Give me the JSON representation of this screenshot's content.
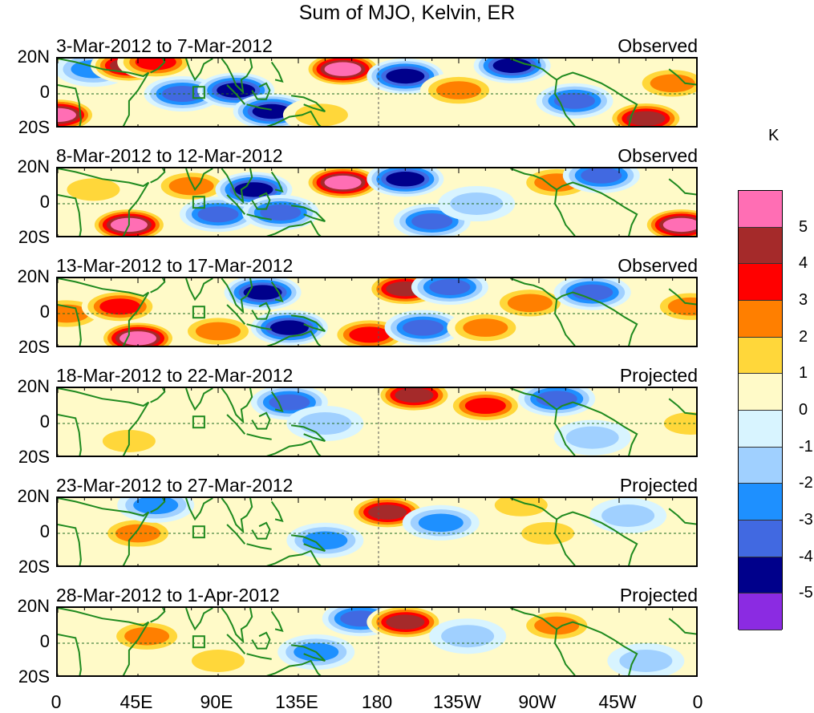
{
  "title": "Sum of MJO, Kelvin, ER",
  "colorbar": {
    "unit": "K",
    "levels": [
      "5",
      "4",
      "3",
      "2",
      "1",
      "0",
      "-1",
      "-2",
      "-3",
      "-4",
      "-5"
    ],
    "colors": [
      "#ff6eb4",
      "#a52a2a",
      "#ff0000",
      "#ff7f00",
      "#ffd73a",
      "#fffac8",
      "#d8f4ff",
      "#a0d0ff",
      "#1e90ff",
      "#4169e1",
      "#00008b",
      "#8b2be2"
    ]
  },
  "panels": [
    {
      "date": "3-Mar-2012 to 7-Mar-2012",
      "tag": "Observed"
    },
    {
      "date": "8-Mar-2012 to 12-Mar-2012",
      "tag": "Observed"
    },
    {
      "date": "13-Mar-2012 to 17-Mar-2012",
      "tag": "Observed"
    },
    {
      "date": "18-Mar-2012 to 22-Mar-2012",
      "tag": "Projected"
    },
    {
      "date": "23-Mar-2012 to 27-Mar-2012",
      "tag": "Projected"
    },
    {
      "date": "28-Mar-2012 to 1-Apr-2012",
      "tag": "Projected"
    }
  ],
  "axes": {
    "y_labels": [
      "20N",
      "0",
      "20S"
    ],
    "x_labels": [
      "0",
      "45E",
      "90E",
      "135E",
      "180",
      "135W",
      "90W",
      "45W",
      "0"
    ]
  },
  "chart_data": {
    "type": "heatmap",
    "title": "Sum of MJO, Kelvin, ER",
    "units": "K",
    "xlim": [
      0,
      360
    ],
    "ylim": [
      -20,
      20
    ],
    "x_ticks": [
      0,
      45,
      90,
      135,
      180,
      225,
      270,
      315,
      360
    ],
    "y_ticks": [
      20,
      0,
      -20
    ],
    "contour_levels": [
      -5,
      -4,
      -3,
      -2,
      -1,
      0,
      1,
      2,
      3,
      4,
      5
    ],
    "grid": false,
    "panels": [
      {
        "label": "3-Mar-2012 to 7-Mar-2012",
        "kind": "Observed",
        "anomalies": [
          {
            "lon": 0,
            "lat": -12,
            "value": 6
          },
          {
            "lon": 20,
            "lat": 14,
            "value": -2.5
          },
          {
            "lon": 40,
            "lat": 16,
            "value": 5
          },
          {
            "lon": 55,
            "lat": 18,
            "value": 4
          },
          {
            "lon": 70,
            "lat": 0,
            "value": -4
          },
          {
            "lon": 100,
            "lat": 2,
            "value": -4.5
          },
          {
            "lon": 120,
            "lat": -10,
            "value": -5
          },
          {
            "lon": 148,
            "lat": -12,
            "value": 2
          },
          {
            "lon": 160,
            "lat": 14,
            "value": 6
          },
          {
            "lon": 195,
            "lat": 10,
            "value": -5
          },
          {
            "lon": 225,
            "lat": 2,
            "value": 3
          },
          {
            "lon": 255,
            "lat": 16,
            "value": -5
          },
          {
            "lon": 290,
            "lat": -4,
            "value": -4
          },
          {
            "lon": 330,
            "lat": -14,
            "value": 5
          },
          {
            "lon": 345,
            "lat": 6,
            "value": 2.5
          }
        ]
      },
      {
        "label": "8-Mar-2012 to 12-Mar-2012",
        "kind": "Observed",
        "anomalies": [
          {
            "lon": 20,
            "lat": 8,
            "value": 1.5
          },
          {
            "lon": 40,
            "lat": -12,
            "value": 6
          },
          {
            "lon": 75,
            "lat": 10,
            "value": 3
          },
          {
            "lon": 90,
            "lat": -6,
            "value": -4
          },
          {
            "lon": 110,
            "lat": 8,
            "value": -4.5
          },
          {
            "lon": 125,
            "lat": -5,
            "value": -4
          },
          {
            "lon": 160,
            "lat": 12,
            "value": 6
          },
          {
            "lon": 195,
            "lat": 14,
            "value": -5
          },
          {
            "lon": 210,
            "lat": -10,
            "value": -4
          },
          {
            "lon": 235,
            "lat": 0,
            "value": -2
          },
          {
            "lon": 280,
            "lat": 12,
            "value": 3
          },
          {
            "lon": 305,
            "lat": 16,
            "value": -4
          },
          {
            "lon": 350,
            "lat": -12,
            "value": 5.5
          }
        ]
      },
      {
        "label": "13-Mar-2012 to 17-Mar-2012",
        "kind": "Observed",
        "anomalies": [
          {
            "lon": 5,
            "lat": 0,
            "value": 3
          },
          {
            "lon": 35,
            "lat": 4,
            "value": 4
          },
          {
            "lon": 45,
            "lat": -14,
            "value": 6
          },
          {
            "lon": 90,
            "lat": -10,
            "value": 3
          },
          {
            "lon": 115,
            "lat": 12,
            "value": -5
          },
          {
            "lon": 130,
            "lat": -8,
            "value": -5
          },
          {
            "lon": 175,
            "lat": -12,
            "value": 3.5
          },
          {
            "lon": 195,
            "lat": 14,
            "value": 5
          },
          {
            "lon": 205,
            "lat": -8,
            "value": -4
          },
          {
            "lon": 220,
            "lat": 15,
            "value": -4
          },
          {
            "lon": 240,
            "lat": -8,
            "value": 3
          },
          {
            "lon": 265,
            "lat": 6,
            "value": 3
          },
          {
            "lon": 300,
            "lat": 12,
            "value": -4
          },
          {
            "lon": 355,
            "lat": 4,
            "value": 3
          }
        ]
      },
      {
        "label": "18-Mar-2012 to 22-Mar-2012",
        "kind": "Projected",
        "anomalies": [
          {
            "lon": 40,
            "lat": -10,
            "value": 1.5
          },
          {
            "lon": 130,
            "lat": 12,
            "value": -3.5
          },
          {
            "lon": 150,
            "lat": 0,
            "value": -2
          },
          {
            "lon": 200,
            "lat": 16,
            "value": 5
          },
          {
            "lon": 240,
            "lat": 10,
            "value": 3.5
          },
          {
            "lon": 280,
            "lat": 14,
            "value": -4
          },
          {
            "lon": 300,
            "lat": -8,
            "value": -1.5
          },
          {
            "lon": 355,
            "lat": 0,
            "value": 2
          }
        ]
      },
      {
        "label": "23-Mar-2012 to 27-Mar-2012",
        "kind": "Projected",
        "anomalies": [
          {
            "lon": 45,
            "lat": 0,
            "value": 2.5
          },
          {
            "lon": 55,
            "lat": 16,
            "value": -3
          },
          {
            "lon": 150,
            "lat": -4,
            "value": -3
          },
          {
            "lon": 185,
            "lat": 12,
            "value": 4.5
          },
          {
            "lon": 215,
            "lat": 6,
            "value": -3
          },
          {
            "lon": 260,
            "lat": 16,
            "value": 2
          },
          {
            "lon": 275,
            "lat": 0,
            "value": 2
          },
          {
            "lon": 320,
            "lat": 10,
            "value": -2
          }
        ]
      },
      {
        "label": "28-Mar-2012 to 1-Apr-2012",
        "kind": "Projected",
        "anomalies": [
          {
            "lon": 50,
            "lat": 4,
            "value": 2.5
          },
          {
            "lon": 90,
            "lat": -10,
            "value": 2
          },
          {
            "lon": 145,
            "lat": -5,
            "value": -2.5
          },
          {
            "lon": 170,
            "lat": 14,
            "value": -4
          },
          {
            "lon": 195,
            "lat": 12,
            "value": 5
          },
          {
            "lon": 230,
            "lat": 4,
            "value": -2
          },
          {
            "lon": 280,
            "lat": 10,
            "value": 3
          },
          {
            "lon": 330,
            "lat": -10,
            "value": -2
          }
        ]
      }
    ]
  }
}
